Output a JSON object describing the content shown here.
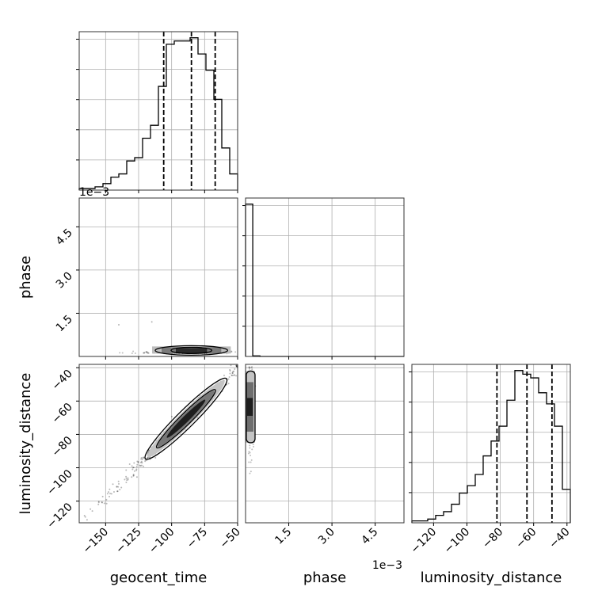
{
  "chart_data": {
    "type": "corner",
    "parameters": [
      "geocent_time",
      "phase",
      "luminosity_distance"
    ],
    "axis_labels": {
      "geocent_time": "geocent_time",
      "phase": "phase",
      "luminosity_distance": "luminosity_distance"
    },
    "ranges": {
      "geocent_time": [
        -170,
        -50
      ],
      "phase": [
        0,
        0.0055
      ],
      "luminosity_distance": [
        -133,
        -38
      ]
    },
    "ticks": {
      "geocent_time": {
        "values": [
          -150,
          -125,
          -100,
          -75,
          -50
        ],
        "labels": [
          "−150",
          "−125",
          "−100",
          "−75",
          "−50"
        ]
      },
      "phase": {
        "values": [
          0.0015,
          0.003,
          0.0045
        ],
        "labels": [
          "1.5",
          "3.0",
          "4.5"
        ],
        "offset_text": "1e−3"
      },
      "luminosity_distance": {
        "values": [
          -120,
          -100,
          -80,
          -60,
          -40
        ],
        "labels": [
          "−120",
          "−100",
          "−80",
          "−60",
          "−40"
        ]
      }
    },
    "grid": true,
    "histograms": {
      "geocent_time": {
        "edges": [
          -170,
          -164,
          -158,
          -152,
          -146,
          -140,
          -134,
          -128,
          -122,
          -116,
          -110,
          -104,
          -98,
          -92,
          -86,
          -80,
          -74,
          -68,
          -62,
          -56,
          -50
        ],
        "counts": [
          0.5,
          0.5,
          1,
          2,
          4,
          5,
          9,
          10,
          16,
          20,
          32,
          45,
          46,
          46,
          47,
          42,
          37,
          28,
          13,
          5
        ],
        "quantiles": [
          -106,
          -85,
          -67
        ]
      },
      "phase": {
        "edges": [
          0,
          0.00025,
          0.0005,
          0.00075,
          0.001,
          0.00125,
          0.0015,
          0.00175,
          0.002,
          0.00225,
          0.0025,
          0.00275,
          0.003,
          0.00325,
          0.0035,
          0.00375,
          0.004,
          0.00425,
          0.0045,
          0.00475,
          0.005,
          0.00525,
          0.0055
        ],
        "counts": [
          100,
          0.4,
          0,
          0,
          0,
          0,
          0,
          0,
          0,
          0,
          0,
          0,
          0,
          0,
          0,
          0,
          0,
          0,
          0,
          0,
          0,
          0
        ]
      },
      "luminosity_distance": {
        "edges": [
          -133,
          -128.25,
          -123.5,
          -118.75,
          -114,
          -109.25,
          -104.5,
          -99.75,
          -95,
          -90.25,
          -85.5,
          -80.75,
          -76,
          -71.25,
          -66.5,
          -61.75,
          -57,
          -52.25,
          -47.5,
          -42.75,
          -38
        ],
        "counts": [
          0.5,
          0.5,
          1,
          2,
          3,
          5,
          8,
          10,
          13,
          18,
          22,
          26,
          33,
          41,
          40,
          39,
          35,
          32,
          26,
          9
        ]
      },
      "luminosity_distance_quantiles": [
        -82,
        -64,
        -49
      ]
    },
    "quantiles_note": "",
    "scatter_2d": {
      "geocent_time_vs_phase": {
        "x_center": -85,
        "x_spread": [
          -110,
          -60
        ],
        "y_value": 0.0001,
        "outlier_example": [
          [
            -140,
            0.0011
          ],
          [
            -115,
            0.0012
          ]
        ]
      },
      "geocent_time_vs_luminosity_distance": {
        "relation": "linear",
        "start": [
          -165,
          -130
        ],
        "end": [
          -50,
          -40
        ]
      },
      "phase_vs_luminosity_distance": {
        "x_value": 0.0001,
        "y_center": -63,
        "y_spread": [
          -85,
          -42
        ]
      }
    }
  }
}
